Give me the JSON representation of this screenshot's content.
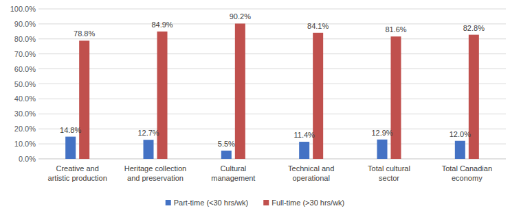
{
  "chart_data": {
    "type": "bar",
    "categories": [
      "Creative and artistic production",
      "Heritage collection and preservation",
      "Cultural management",
      "Technical and operational",
      "Total cultural sector",
      "Total Canadian economy"
    ],
    "series": [
      {
        "name": "Part-time (<30 hrs/wk)",
        "color": "#4472c4",
        "values": [
          14.8,
          12.7,
          5.5,
          11.4,
          12.9,
          12.0
        ],
        "value_labels": [
          "14.8%",
          "12.7%",
          "5.5%",
          "11.4%",
          "12.9%",
          "12.0%"
        ]
      },
      {
        "name": "Full-time (>30 hrs/wk)",
        "color": "#c0504d",
        "values": [
          78.8,
          84.9,
          90.2,
          84.1,
          81.6,
          82.8
        ],
        "value_labels": [
          "78.8%",
          "84.9%",
          "90.2%",
          "84.1%",
          "81.6%",
          "82.8%"
        ]
      }
    ],
    "ylim": [
      0,
      100
    ],
    "yticks": [
      {
        "value": 0,
        "label": "0.0%"
      },
      {
        "value": 10,
        "label": "10.0%"
      },
      {
        "value": 20,
        "label": "20.0%"
      },
      {
        "value": 30,
        "label": "30.0%"
      },
      {
        "value": 40,
        "label": "40.0%"
      },
      {
        "value": 50,
        "label": "50.0%"
      },
      {
        "value": 60,
        "label": "60.0%"
      },
      {
        "value": 70,
        "label": "70.0%"
      },
      {
        "value": 80,
        "label": "80.0%"
      },
      {
        "value": 90,
        "label": "90.0%"
      },
      {
        "value": 100,
        "label": "100.0%"
      }
    ],
    "grid": true,
    "data_labels": true,
    "legend": "bottom"
  }
}
